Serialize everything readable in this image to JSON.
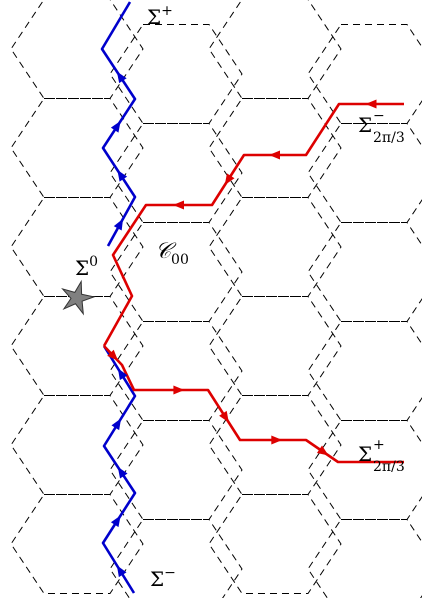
{
  "labels": {
    "sigma_plus": {
      "base": "Σ",
      "sup": "+"
    },
    "sigma_minus": {
      "base": "Σ",
      "sup": "−"
    },
    "sigma_zero": {
      "base": "Σ",
      "sup": "0"
    },
    "sigma_2pi3_minus": {
      "base": "Σ",
      "sup": "−",
      "sub": "2π/3"
    },
    "sigma_2pi3_plus": {
      "base": "Σ",
      "sup": "+",
      "sub": "2π/3"
    },
    "cell": {
      "base": "𝒞",
      "sub": "00"
    }
  },
  "colors": {
    "grid": "#000000",
    "blue_path": "#0000cc",
    "red_path": "#dd0000",
    "star_fill": "#808080",
    "star_stroke": "#333333"
  },
  "grid": {
    "style": "dashed",
    "lattice": "hexagonal"
  },
  "marker": {
    "shape": "star",
    "at": "sigma_zero"
  }
}
